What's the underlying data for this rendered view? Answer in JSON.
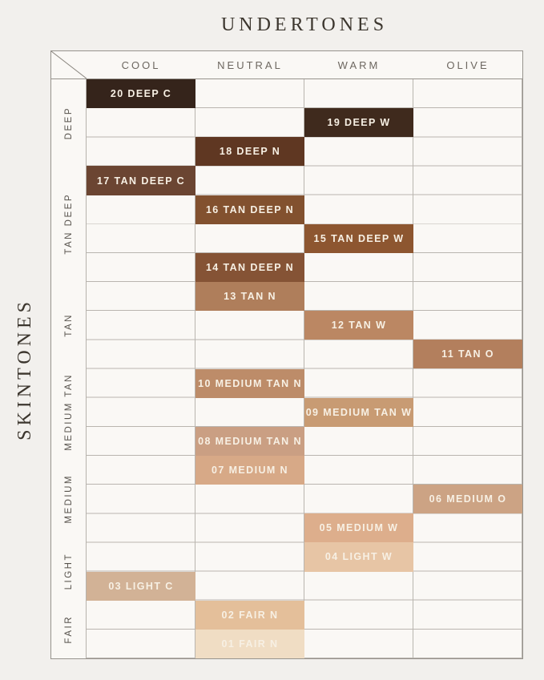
{
  "colors": {
    "background": "#F2F0ED",
    "cell_background": "#FAF8F5",
    "grid_line": "#B9B5AF",
    "outer_border": "#97938D",
    "heading_text": "#3C362E",
    "column_header_text": "#6D6760",
    "chip_text": "#F7F0E4"
  },
  "chart_data": {
    "type": "table",
    "title": "UNDERTONES",
    "row_axis_label": "SKINTONES",
    "columns": [
      "COOL",
      "NEUTRAL",
      "WARM",
      "OLIVE"
    ],
    "row_count": 20,
    "row_groups": [
      {
        "label": "DEEP",
        "rows": 3
      },
      {
        "label": "TAN DEEP",
        "rows": 4
      },
      {
        "label": "TAN",
        "rows": 3
      },
      {
        "label": "MEDIUM TAN",
        "rows": 3
      },
      {
        "label": "MEDIUM",
        "rows": 3
      },
      {
        "label": "LIGHT",
        "rows": 2
      },
      {
        "label": "FAIR",
        "rows": 2
      }
    ],
    "shades": [
      {
        "row": 1,
        "column": "COOL",
        "label": "20 DEEP C",
        "color": "#35241B"
      },
      {
        "row": 2,
        "column": "WARM",
        "label": "19 DEEP W",
        "color": "#3F2A1D"
      },
      {
        "row": 3,
        "column": "NEUTRAL",
        "label": "18 DEEP N",
        "color": "#5F3722"
      },
      {
        "row": 4,
        "column": "COOL",
        "label": "17 TAN DEEP C",
        "color": "#6B4532"
      },
      {
        "row": 5,
        "column": "NEUTRAL",
        "label": "16 TAN DEEP N",
        "color": "#82512F"
      },
      {
        "row": 6,
        "column": "WARM",
        "label": "15 TAN DEEP W",
        "color": "#8D5630"
      },
      {
        "row": 7,
        "column": "NEUTRAL",
        "label": "14 TAN DEEP N",
        "color": "#855335"
      },
      {
        "row": 8,
        "column": "NEUTRAL",
        "label": "13 TAN N",
        "color": "#AF7E5B"
      },
      {
        "row": 9,
        "column": "WARM",
        "label": "12 TAN W",
        "color": "#BB8763"
      },
      {
        "row": 10,
        "column": "OLIVE",
        "label": "11 TAN O",
        "color": "#B37F5D"
      },
      {
        "row": 11,
        "column": "NEUTRAL",
        "label": "10 MEDIUM TAN N",
        "color": "#BD8C69"
      },
      {
        "row": 12,
        "column": "WARM",
        "label": "09 MEDIUM TAN W",
        "color": "#C89B73"
      },
      {
        "row": 13,
        "column": "NEUTRAL",
        "label": "08 MEDIUM TAN N",
        "color": "#CA9F83"
      },
      {
        "row": 14,
        "column": "NEUTRAL",
        "label": "07 MEDIUM N",
        "color": "#D7A987"
      },
      {
        "row": 15,
        "column": "OLIVE",
        "label": "06 MEDIUM O",
        "color": "#CCA384"
      },
      {
        "row": 16,
        "column": "WARM",
        "label": "05 MEDIUM W",
        "color": "#DDAE8C"
      },
      {
        "row": 17,
        "column": "WARM",
        "label": "04 LIGHT W",
        "color": "#E7C5A5"
      },
      {
        "row": 18,
        "column": "COOL",
        "label": "03 LIGHT C",
        "color": "#D2B296"
      },
      {
        "row": 19,
        "column": "NEUTRAL",
        "label": "02 FAIR N",
        "color": "#E4BF9A"
      },
      {
        "row": 20,
        "column": "NEUTRAL",
        "label": "01 FAIR N",
        "color": "#F0DDC4"
      }
    ]
  }
}
